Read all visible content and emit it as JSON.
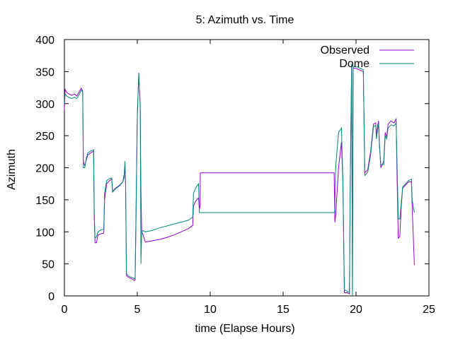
{
  "chart_data": {
    "type": "line",
    "title": "5: Azimuth vs. Time",
    "xlabel": "time (Elapse Hours)",
    "ylabel": "Azimuth",
    "xlim": [
      0,
      25
    ],
    "ylim": [
      0,
      400
    ],
    "xticks": [
      0,
      5,
      10,
      15,
      20,
      25
    ],
    "yticks": [
      0,
      50,
      100,
      150,
      200,
      250,
      300,
      350,
      400
    ],
    "grid": false,
    "legend_position": "top-right",
    "series": [
      {
        "name": "Observed",
        "color": "#9400d3",
        "points": [
          [
            0.0,
            290
          ],
          [
            0.05,
            322
          ],
          [
            0.15,
            318
          ],
          [
            0.3,
            315
          ],
          [
            0.5,
            313
          ],
          [
            0.7,
            315
          ],
          [
            0.85,
            312
          ],
          [
            1.0,
            318
          ],
          [
            1.15,
            324
          ],
          [
            1.25,
            320
          ],
          [
            1.3,
            210
          ],
          [
            1.4,
            203
          ],
          [
            1.5,
            212
          ],
          [
            1.6,
            220
          ],
          [
            1.8,
            223
          ],
          [
            2.0,
            226
          ],
          [
            2.05,
            120
          ],
          [
            2.1,
            83
          ],
          [
            2.2,
            83
          ],
          [
            2.3,
            95
          ],
          [
            2.5,
            97
          ],
          [
            2.7,
            98
          ],
          [
            2.75,
            150
          ],
          [
            2.9,
            175
          ],
          [
            3.1,
            180
          ],
          [
            3.25,
            182
          ],
          [
            3.3,
            163
          ],
          [
            3.5,
            168
          ],
          [
            3.8,
            173
          ],
          [
            4.0,
            178
          ],
          [
            4.1,
            185
          ],
          [
            4.15,
            205
          ],
          [
            4.2,
            170
          ],
          [
            4.25,
            32
          ],
          [
            4.4,
            29
          ],
          [
            4.6,
            27
          ],
          [
            4.8,
            24
          ],
          [
            4.85,
            25
          ],
          [
            4.9,
            100
          ],
          [
            5.0,
            278
          ],
          [
            5.1,
            348
          ],
          [
            5.2,
            295
          ],
          [
            5.25,
            165
          ],
          [
            5.3,
            100
          ],
          [
            5.4,
            95
          ],
          [
            5.55,
            84
          ],
          [
            6.0,
            86
          ],
          [
            6.5,
            88
          ],
          [
            7.0,
            91
          ],
          [
            7.5,
            95
          ],
          [
            8.0,
            100
          ],
          [
            8.5,
            105
          ],
          [
            8.8,
            110
          ],
          [
            8.85,
            140
          ],
          [
            9.0,
            148
          ],
          [
            9.2,
            153
          ],
          [
            9.25,
            135
          ],
          [
            9.3,
            140
          ],
          [
            9.32,
            192
          ],
          [
            18.5,
            192
          ],
          [
            18.55,
            115
          ],
          [
            18.6,
            125
          ],
          [
            18.8,
            200
          ],
          [
            19.0,
            240
          ],
          [
            19.1,
            175
          ],
          [
            19.2,
            5
          ],
          [
            19.4,
            5
          ],
          [
            19.55,
            3
          ],
          [
            19.6,
            170
          ],
          [
            19.7,
            360
          ],
          [
            19.75,
            10
          ],
          [
            19.8,
            355
          ],
          [
            20.0,
            355
          ],
          [
            20.5,
            350
          ],
          [
            20.6,
            192
          ],
          [
            20.8,
            197
          ],
          [
            21.0,
            225
          ],
          [
            21.2,
            268
          ],
          [
            21.35,
            270
          ],
          [
            21.4,
            250
          ],
          [
            21.5,
            268
          ],
          [
            21.55,
            273
          ],
          [
            21.6,
            240
          ],
          [
            21.7,
            200
          ],
          [
            21.9,
            210
          ],
          [
            22.0,
            255
          ],
          [
            22.1,
            248
          ],
          [
            22.2,
            268
          ],
          [
            22.4,
            273
          ],
          [
            22.6,
            270
          ],
          [
            22.75,
            276
          ],
          [
            22.8,
            200
          ],
          [
            22.9,
            90
          ],
          [
            23.0,
            92
          ],
          [
            23.1,
            140
          ],
          [
            23.2,
            168
          ],
          [
            23.4,
            173
          ],
          [
            23.6,
            178
          ],
          [
            23.8,
            178
          ],
          [
            23.85,
            140
          ],
          [
            24.0,
            48
          ]
        ]
      },
      {
        "name": "Dome",
        "color": "#008b74",
        "points": [
          [
            0.0,
            300
          ],
          [
            0.05,
            315
          ],
          [
            0.15,
            312
          ],
          [
            0.3,
            310
          ],
          [
            0.5,
            308
          ],
          [
            0.7,
            310
          ],
          [
            0.85,
            308
          ],
          [
            1.0,
            314
          ],
          [
            1.15,
            321
          ],
          [
            1.25,
            318
          ],
          [
            1.3,
            200
          ],
          [
            1.4,
            200
          ],
          [
            1.5,
            215
          ],
          [
            1.6,
            223
          ],
          [
            1.8,
            226
          ],
          [
            2.0,
            228
          ],
          [
            2.05,
            130
          ],
          [
            2.1,
            90
          ],
          [
            2.2,
            92
          ],
          [
            2.3,
            100
          ],
          [
            2.5,
            103
          ],
          [
            2.7,
            104
          ],
          [
            2.75,
            160
          ],
          [
            2.9,
            180
          ],
          [
            3.1,
            183
          ],
          [
            3.25,
            184
          ],
          [
            3.3,
            162
          ],
          [
            3.5,
            167
          ],
          [
            3.8,
            172
          ],
          [
            4.0,
            178
          ],
          [
            4.1,
            190
          ],
          [
            4.15,
            210
          ],
          [
            4.2,
            175
          ],
          [
            4.25,
            35
          ],
          [
            4.4,
            31
          ],
          [
            4.6,
            29
          ],
          [
            4.8,
            27
          ],
          [
            4.85,
            28
          ],
          [
            4.9,
            110
          ],
          [
            5.0,
            285
          ],
          [
            5.1,
            347
          ],
          [
            5.2,
            300
          ],
          [
            5.25,
            50
          ],
          [
            5.3,
            100
          ],
          [
            5.4,
            102
          ],
          [
            5.55,
            100
          ],
          [
            6.0,
            102
          ],
          [
            6.5,
            106
          ],
          [
            7.0,
            109
          ],
          [
            7.5,
            112
          ],
          [
            8.0,
            115
          ],
          [
            8.5,
            118
          ],
          [
            8.8,
            123
          ],
          [
            8.85,
            160
          ],
          [
            9.0,
            168
          ],
          [
            9.2,
            175
          ],
          [
            9.25,
            130
          ],
          [
            9.32,
            130
          ],
          [
            18.5,
            130
          ],
          [
            18.55,
            135
          ],
          [
            18.6,
            200
          ],
          [
            18.8,
            255
          ],
          [
            19.0,
            262
          ],
          [
            19.1,
            180
          ],
          [
            19.2,
            10
          ],
          [
            19.4,
            7
          ],
          [
            19.55,
            5
          ],
          [
            19.6,
            180
          ],
          [
            19.7,
            362
          ],
          [
            19.75,
            0
          ],
          [
            19.8,
            358
          ],
          [
            20.0,
            358
          ],
          [
            20.5,
            353
          ],
          [
            20.6,
            188
          ],
          [
            20.8,
            193
          ],
          [
            21.0,
            220
          ],
          [
            21.2,
            264
          ],
          [
            21.35,
            266
          ],
          [
            21.4,
            245
          ],
          [
            21.5,
            262
          ],
          [
            21.55,
            268
          ],
          [
            21.6,
            235
          ],
          [
            21.7,
            205
          ],
          [
            21.9,
            205
          ],
          [
            22.0,
            250
          ],
          [
            22.1,
            245
          ],
          [
            22.2,
            262
          ],
          [
            22.4,
            267
          ],
          [
            22.6,
            265
          ],
          [
            22.75,
            270
          ],
          [
            22.8,
            220
          ],
          [
            22.9,
            120
          ],
          [
            23.0,
            120
          ],
          [
            23.1,
            145
          ],
          [
            23.2,
            170
          ],
          [
            23.4,
            175
          ],
          [
            23.6,
            180
          ],
          [
            23.8,
            182
          ],
          [
            23.85,
            150
          ],
          [
            24.0,
            130
          ]
        ]
      }
    ]
  }
}
